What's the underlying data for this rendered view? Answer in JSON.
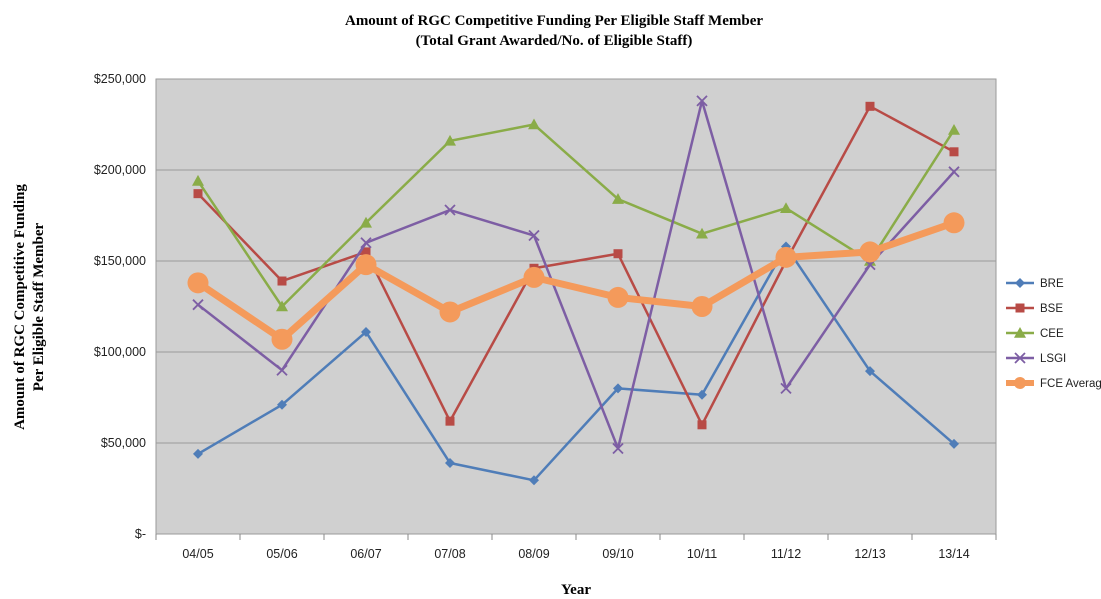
{
  "chart_data": {
    "type": "line",
    "title": "Amount of RGC Competitive Funding Per Eligible Staff Member",
    "subtitle": "(Total Grant Awarded/No. of Eligible Staff)",
    "xlabel": "Year",
    "ylabel": "Amount of RGC Competitive Funding",
    "ylabel2": "Per Eligible Staff Member",
    "categories": [
      "04/05",
      "05/06",
      "06/07",
      "07/08",
      "08/09",
      "09/10",
      "10/11",
      "11/12",
      "12/13",
      "13/14"
    ],
    "ylim": [
      0,
      250000
    ],
    "yticks": [
      {
        "value": 0,
        "label": "$-"
      },
      {
        "value": 50000,
        "label": "$50,000"
      },
      {
        "value": 100000,
        "label": "$100,000"
      },
      {
        "value": 150000,
        "label": "$150,000"
      },
      {
        "value": 200000,
        "label": "$200,000"
      },
      {
        "value": 250000,
        "label": "$250,000"
      }
    ],
    "grid": true,
    "plot_background": "#d0d0d0",
    "legend_position": "right",
    "series": [
      {
        "name": "BRE",
        "color": "#4f7db8",
        "marker": "diamond",
        "values": [
          44000,
          71000,
          111000,
          39000,
          29500,
          80000,
          76500,
          158000,
          89500,
          49500
        ]
      },
      {
        "name": "BSE",
        "color": "#b84b46",
        "marker": "square",
        "values": [
          187000,
          139000,
          155000,
          62000,
          146000,
          154000,
          60000,
          150000,
          235000,
          210000
        ]
      },
      {
        "name": "CEE",
        "color": "#8aac48",
        "marker": "triangle",
        "values": [
          194000,
          125000,
          171000,
          216000,
          225000,
          184000,
          165000,
          179000,
          150000,
          222000
        ]
      },
      {
        "name": "LSGI",
        "color": "#7d5ea4",
        "marker": "x",
        "values": [
          126000,
          90000,
          160000,
          178000,
          164000,
          47000,
          238000,
          80000,
          148000,
          199000
        ]
      },
      {
        "name": "FCE Average",
        "color": "#f49a5b",
        "marker": "circle",
        "values": [
          138000,
          107000,
          148000,
          122000,
          141000,
          130000,
          125000,
          152000,
          155000,
          171000
        ]
      }
    ]
  }
}
